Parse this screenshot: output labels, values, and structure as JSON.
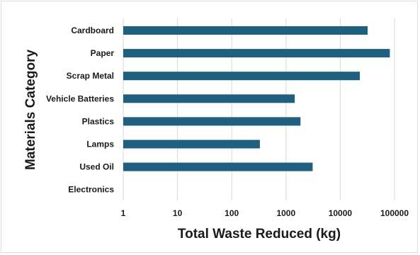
{
  "chart_data": {
    "type": "bar",
    "orientation": "horizontal",
    "categories": [
      "Cardboard",
      "Paper",
      "Scrap Metal",
      "Vehicle Batteries",
      "Plastics",
      "Lamps",
      "Used Oil",
      "Electronics"
    ],
    "values": [
      32000,
      82000,
      23000,
      1450,
      1850,
      330,
      3100,
      null
    ],
    "xlabel": "Total Waste Reduced (kg)",
    "ylabel": "Materials Category",
    "x_scale": "log",
    "xlim": [
      1,
      100000
    ],
    "x_ticks": [
      "1",
      "10",
      "100",
      "1000",
      "10000",
      "100000"
    ],
    "grid": "vertical",
    "bar_color": "#1f5f7f",
    "grid_color": "#d9d9d9"
  }
}
